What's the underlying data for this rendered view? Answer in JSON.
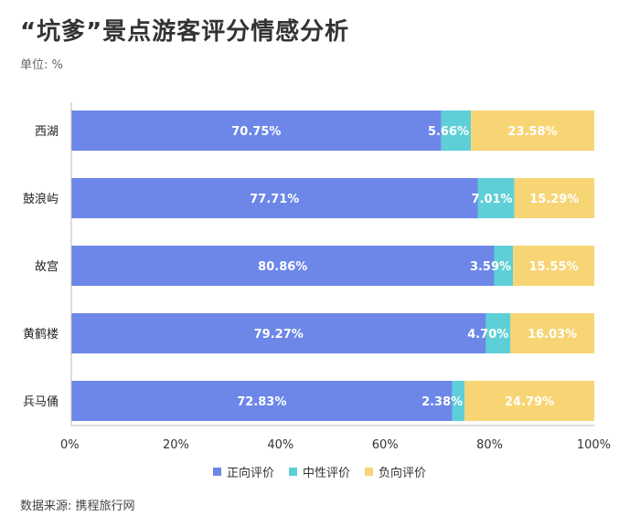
{
  "title": "“坑爹”景点游客评分情感分析",
  "unit": "单位: %",
  "source": "数据来源: 携程旅行网",
  "chart_data": {
    "type": "bar",
    "orientation": "horizontal",
    "stacked": true,
    "categories": [
      "西湖",
      "鼓浪屿",
      "故宫",
      "黄鹤楼",
      "兵马俑"
    ],
    "series": [
      {
        "name": "正向评价",
        "color": "#6c87e8",
        "values": [
          70.75,
          77.71,
          80.86,
          79.27,
          72.83
        ],
        "labels": [
          "70.75%",
          "77.71%",
          "80.86%",
          "79.27%",
          "72.83%"
        ]
      },
      {
        "name": "中性评价",
        "color": "#5ecfd6",
        "values": [
          5.66,
          7.01,
          3.59,
          4.7,
          2.38
        ],
        "labels": [
          "5.66%",
          "7.01%",
          "3.59%",
          "4.70%",
          "2.38%"
        ]
      },
      {
        "name": "负向评价",
        "color": "#f7d574",
        "values": [
          23.58,
          15.29,
          15.55,
          16.03,
          24.79
        ],
        "labels": [
          "23.58%",
          "15.29%",
          "15.55%",
          "16.03%",
          "24.79%"
        ]
      }
    ],
    "xlim": [
      0,
      100
    ],
    "xticks": [
      0,
      20,
      40,
      60,
      80,
      100
    ],
    "xtick_labels": [
      "0%",
      "20%",
      "40%",
      "60%",
      "80%",
      "100%"
    ],
    "legend_position": "bottom",
    "grid": false
  }
}
